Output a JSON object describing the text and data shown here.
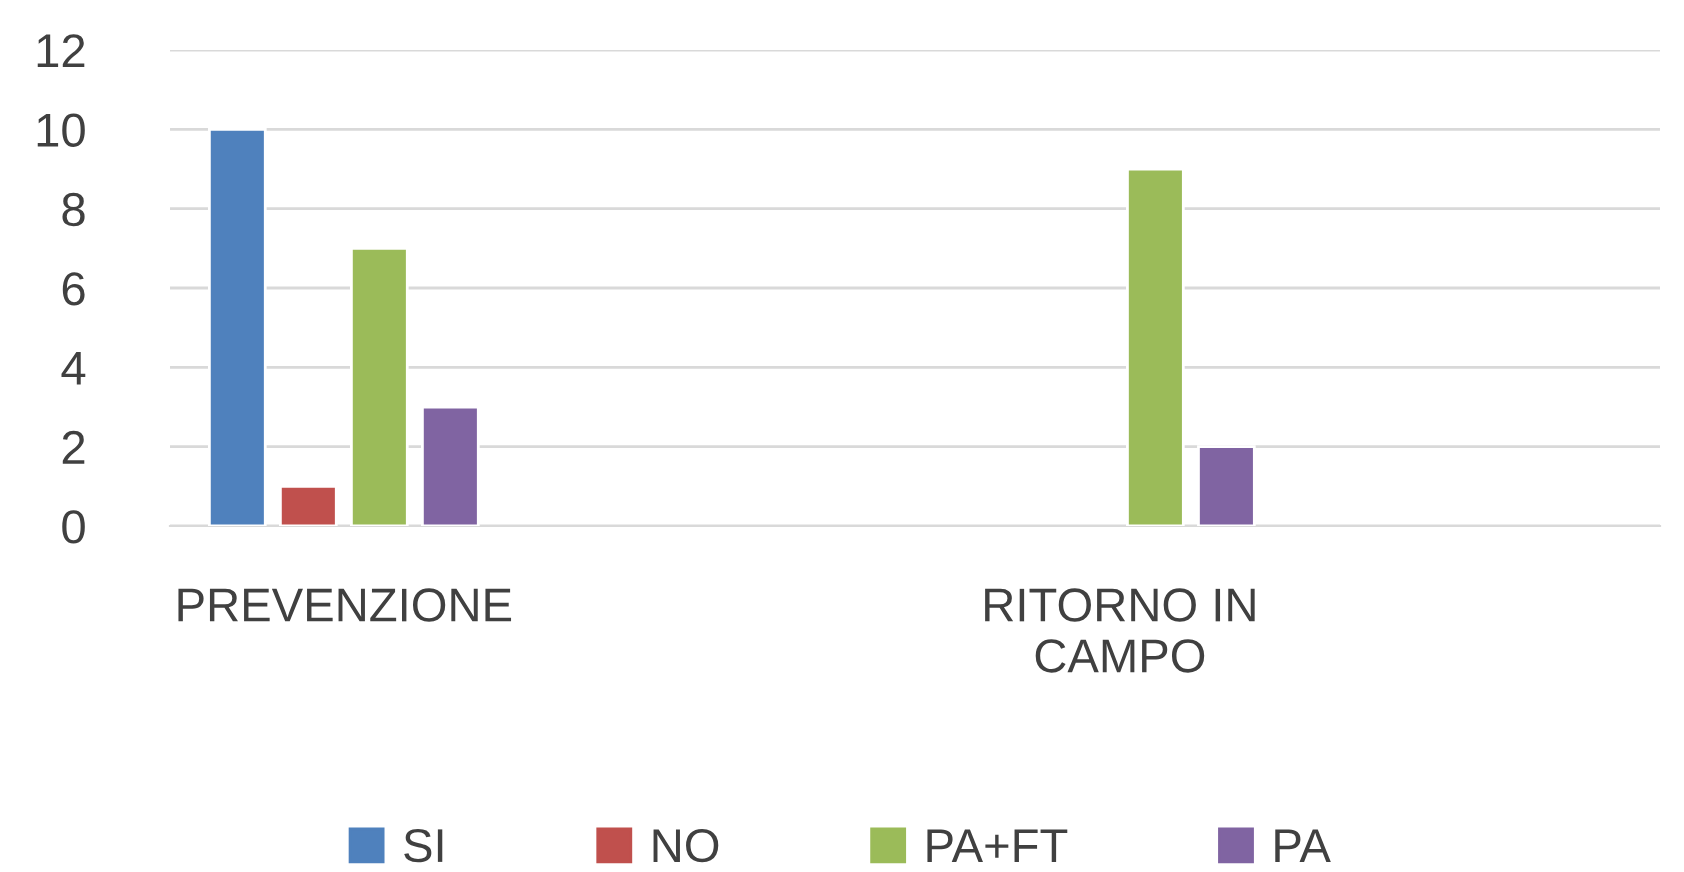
{
  "chart_data": {
    "type": "bar",
    "categories": [
      "PREVENZIONE",
      "RITORNO IN\nCAMPO"
    ],
    "series": [
      {
        "name": "SI",
        "color": "#4f81bd",
        "values": [
          10,
          null
        ]
      },
      {
        "name": "NO",
        "color": "#c0504d",
        "values": [
          1,
          null
        ]
      },
      {
        "name": "PA+FT",
        "color": "#9bbb59",
        "values": [
          7,
          9
        ]
      },
      {
        "name": "PA",
        "color": "#8064a2",
        "values": [
          3,
          2
        ]
      }
    ],
    "ylim": [
      0,
      12
    ],
    "yticks": [
      0,
      2,
      4,
      6,
      8,
      10,
      12
    ],
    "grid": "y",
    "legend": "bottom"
  }
}
